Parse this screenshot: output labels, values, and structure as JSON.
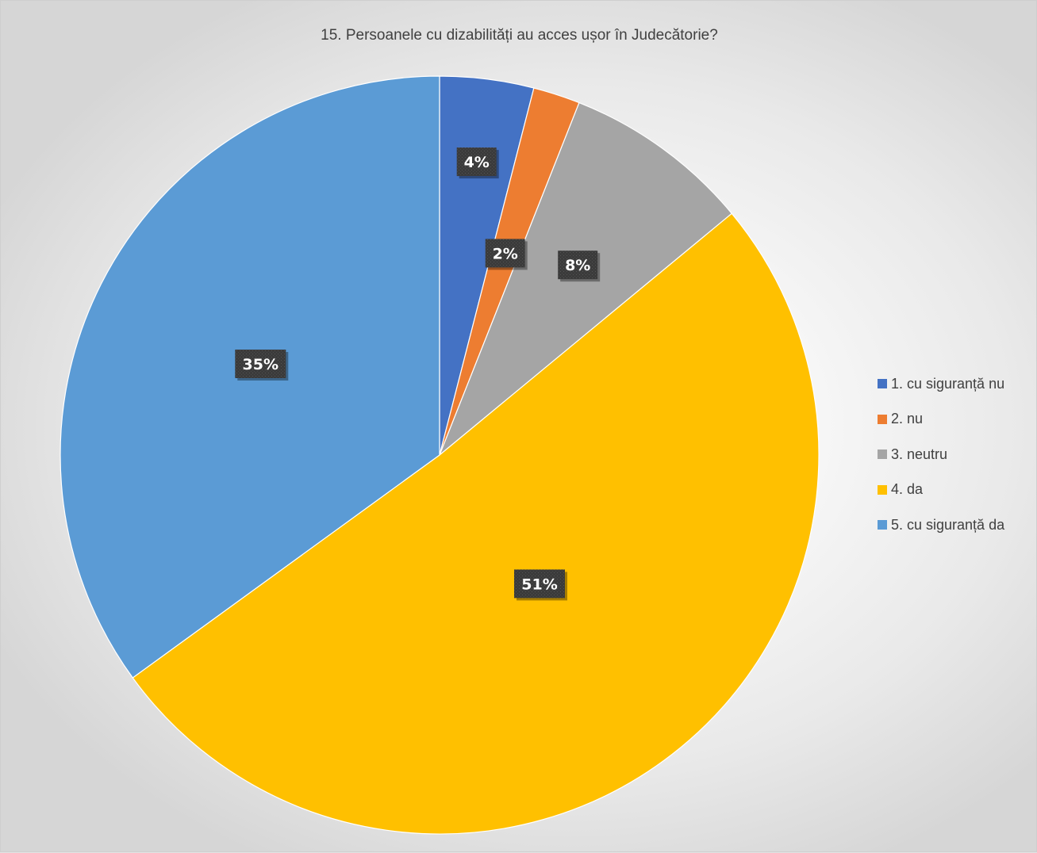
{
  "chart_data": {
    "type": "pie",
    "title": "15. Persoanele cu dizabilități au acces ușor în Judecătorie?",
    "categories": [
      "1. cu siguranță nu",
      "2. nu",
      "3. neutru",
      "4. da",
      "5. cu siguranță da"
    ],
    "values": [
      4,
      2,
      8,
      51,
      35
    ],
    "labels": [
      "4%",
      "2%",
      "8%",
      "51%",
      "35%"
    ],
    "colors": [
      "#4472c4",
      "#ed7d31",
      "#a5a5a5",
      "#ffc000",
      "#5b9bd5"
    ],
    "legend_position": "right"
  }
}
